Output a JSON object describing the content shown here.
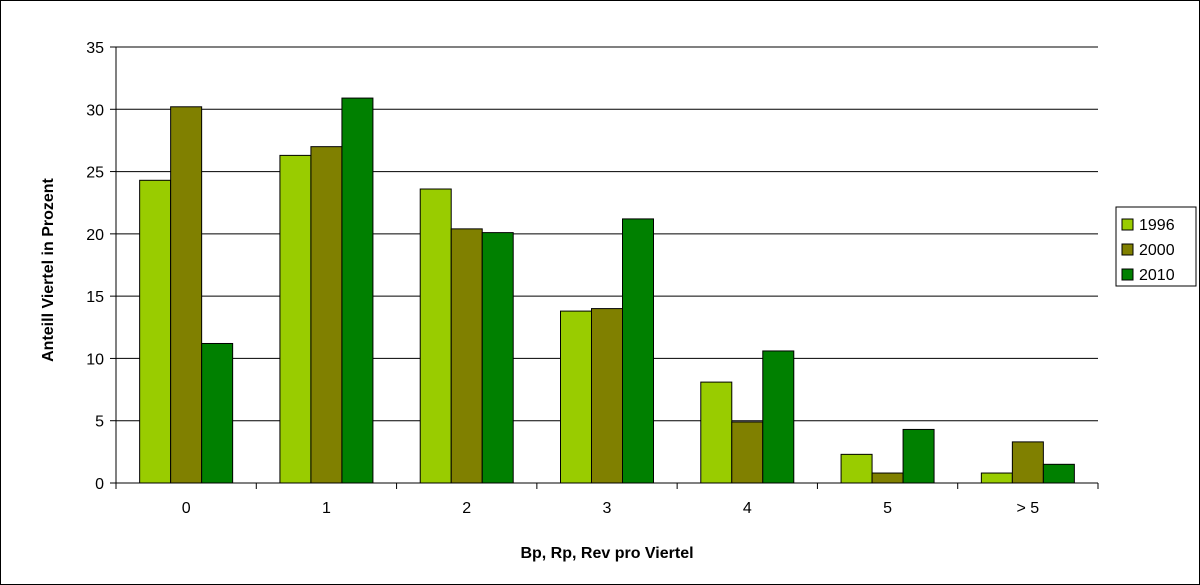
{
  "chart_data": {
    "type": "bar",
    "categories": [
      "0",
      "1",
      "2",
      "3",
      "4",
      "5",
      "> 5"
    ],
    "series": [
      {
        "name": "1996",
        "color": "#99cc00",
        "values": [
          24.3,
          26.3,
          23.6,
          13.8,
          8.1,
          2.3,
          0.8
        ]
      },
      {
        "name": "2000",
        "color": "#808000",
        "values": [
          30.2,
          27.0,
          20.4,
          14.0,
          4.9,
          0.8,
          3.3
        ]
      },
      {
        "name": "2010",
        "color": "#008000",
        "values": [
          11.2,
          30.9,
          20.1,
          21.2,
          10.6,
          4.3,
          1.5
        ]
      }
    ],
    "title": "",
    "xlabel": "Bp, Rp, Rev pro Viertel",
    "ylabel": "Anteill Viertel in Prozent",
    "ylim": [
      0,
      35
    ],
    "yticks": [
      "0",
      "5",
      "10",
      "15",
      "20",
      "25",
      "30",
      "35"
    ],
    "grid": true,
    "legend_position": "right"
  }
}
